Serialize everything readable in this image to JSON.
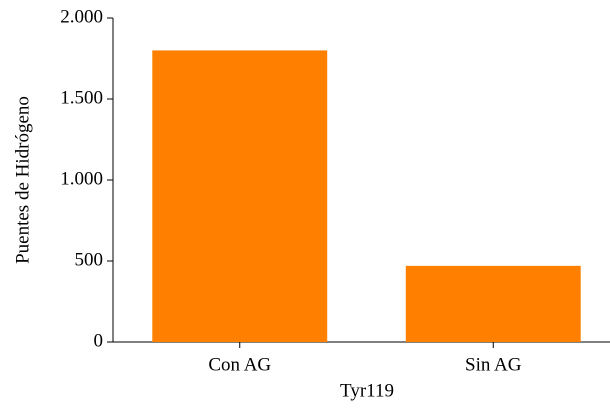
{
  "chart_data": {
    "type": "bar",
    "x_label": "Tyr119",
    "y_label": "Puentes de Hidrógeno",
    "categories": [
      "Con AG",
      "Sin AG"
    ],
    "values": [
      1800,
      470
    ],
    "color": "#ff8000",
    "ylim": [
      0,
      2000
    ],
    "yticks": [
      0,
      500,
      {
        "value": 1000,
        "label": "1.000"
      },
      {
        "value": 1500,
        "label": "1.500"
      },
      {
        "value": 2000,
        "label": "2.000"
      }
    ],
    "grid": false
  }
}
